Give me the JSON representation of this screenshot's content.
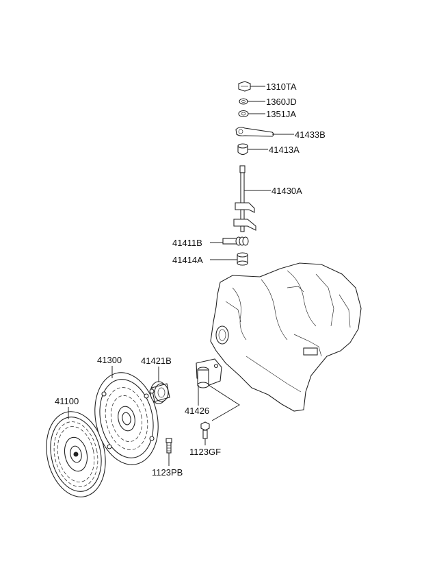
{
  "callouts": [
    {
      "id": "1310TA",
      "text": "1310TA"
    },
    {
      "id": "1360JD",
      "text": "1360JD"
    },
    {
      "id": "1351JA",
      "text": "1351JA"
    },
    {
      "id": "41433B",
      "text": "41433B"
    },
    {
      "id": "41413A",
      "text": "41413A"
    },
    {
      "id": "41430A",
      "text": "41430A"
    },
    {
      "id": "41411B",
      "text": "41411B"
    },
    {
      "id": "41414A",
      "text": "41414A"
    },
    {
      "id": "41300",
      "text": "41300"
    },
    {
      "id": "41421B",
      "text": "41421B"
    },
    {
      "id": "41100",
      "text": "41100"
    },
    {
      "id": "41426",
      "text": "41426"
    },
    {
      "id": "1123GF",
      "text": "1123GF"
    },
    {
      "id": "1123PB",
      "text": "1123PB"
    }
  ]
}
